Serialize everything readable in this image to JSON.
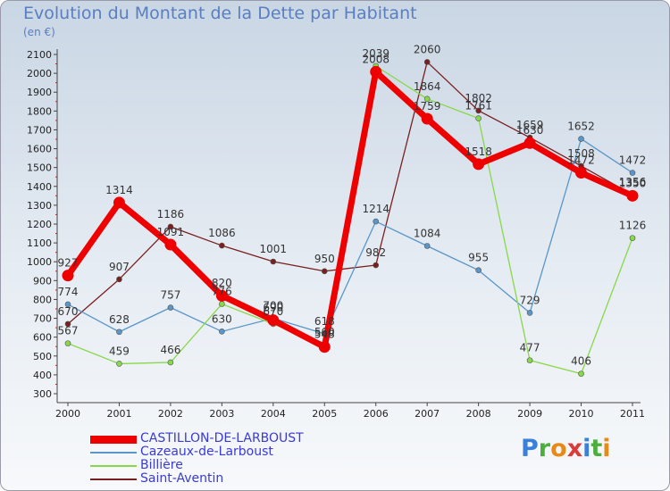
{
  "header": {
    "title": "Evolution du Montant de la Dette par Habitant",
    "unit": "(en €)"
  },
  "brand": {
    "text": "Proxiti",
    "colors": [
      "#3a7fd9",
      "#4cae3c",
      "#e88a1a",
      "#d93a3a",
      "#3a7fd9",
      "#4cae3c",
      "#e88a1a"
    ]
  },
  "chart_data": {
    "type": "line",
    "title": "Evolution du Montant de la Dette par Habitant",
    "subtitle": "(en €)",
    "categories": [
      "2000",
      "2001",
      "2002",
      "2003",
      "2004",
      "2005",
      "2006",
      "2007",
      "2008",
      "2009",
      "2010",
      "2011"
    ],
    "ylim": [
      300,
      2100
    ],
    "yticks": [
      300,
      400,
      500,
      600,
      700,
      800,
      900,
      1000,
      1100,
      1200,
      1300,
      1400,
      1500,
      1600,
      1700,
      1800,
      1900,
      2000,
      2100
    ],
    "grid": false,
    "legend": "bottom-left",
    "series": [
      {
        "name": "CASTILLON-DE-LARBOUST",
        "color": "#ee0000",
        "values": [
          927,
          1314,
          1091,
          820,
          690,
          548,
          2008,
          1759,
          1518,
          1630,
          1472,
          1350
        ]
      },
      {
        "name": "Cazeaux-de-Larboust",
        "color": "#5a96c8",
        "values": [
          774,
          628,
          757,
          630,
          700,
          618,
          1214,
          1084,
          955,
          729,
          1652,
          1472
        ]
      },
      {
        "name": "Billière",
        "color": "#88d848",
        "values": [
          567,
          459,
          466,
          776,
          670,
          560,
          2039,
          1864,
          1761,
          477,
          406,
          1126
        ]
      },
      {
        "name": "Saint-Aventin",
        "color": "#7a1f1f",
        "values": [
          670,
          907,
          1186,
          1086,
          1001,
          950,
          982,
          2060,
          1802,
          1659,
          1508,
          1356
        ]
      }
    ]
  }
}
